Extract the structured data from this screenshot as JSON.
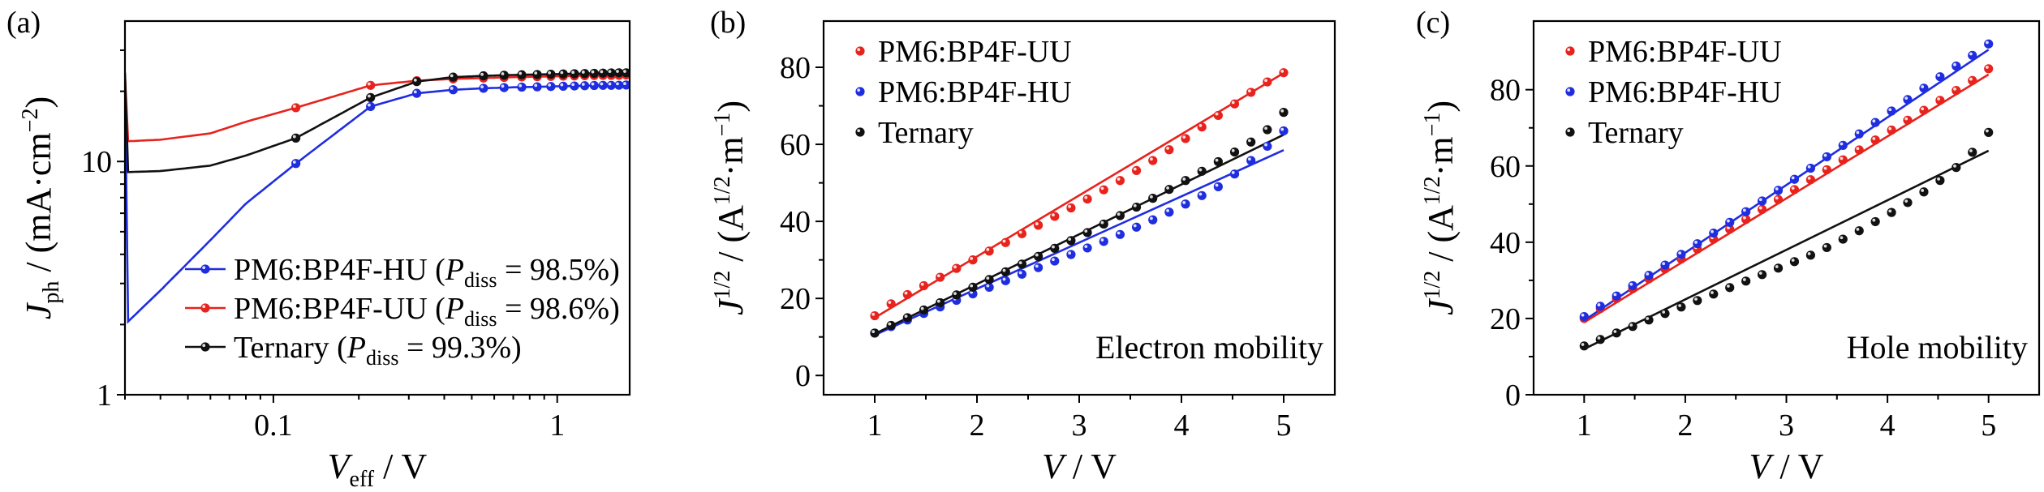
{
  "figure": {
    "panels": [
      "(a)",
      "(b)",
      "(c)"
    ]
  },
  "colors": {
    "red": "#e8221c",
    "blue": "#1f2de0",
    "black": "#111111"
  },
  "chart_data": [
    {
      "type": "line",
      "panel_label": "(a)",
      "title": "",
      "xlabel_main": "V",
      "xlabel_sub": "eff",
      "xlabel_tail": " / V",
      "ylabel_main": "J",
      "ylabel_sub": "ph",
      "ylabel_tail": " / (mA·cm",
      "ylabel_sup": "−2",
      "ylabel_end": ")",
      "x_scale": "log",
      "y_scale": "log",
      "xlim": [
        0.03,
        1.8
      ],
      "ylim": [
        1,
        40
      ],
      "x_ticks": [
        0.1,
        1
      ],
      "x_tick_labels": [
        "0.1",
        "1"
      ],
      "y_ticks": [
        1,
        10
      ],
      "y_tick_labels": [
        "1",
        "10"
      ],
      "legend_placement": "bottom-right",
      "series": [
        {
          "name": "PM6:BP4F-HU",
          "legend_pre": "PM6:BP4F-HU (",
          "legend_p": "P",
          "legend_sub": "diss",
          "legend_post": " = 98.5%)",
          "color": "blue",
          "x": [
            0.03,
            0.04,
            0.06,
            0.08,
            0.12,
            0.22,
            0.32,
            0.43,
            0.55,
            0.7,
            0.85,
            1.0,
            1.2,
            1.4,
            1.6,
            1.8
          ],
          "y": [
            2.0,
            2.8,
            4.6,
            6.6,
            9.8,
            17.2,
            19.6,
            20.3,
            20.6,
            20.8,
            20.9,
            21.0,
            21.1,
            21.2,
            21.2,
            21.3
          ]
        },
        {
          "name": "PM6:BP4F-UU",
          "legend_pre": "PM6:BP4F-UU (",
          "legend_p": "P",
          "legend_sub": "diss",
          "legend_post": " = 98.6%)",
          "color": "red",
          "x": [
            0.03,
            0.04,
            0.06,
            0.08,
            0.12,
            0.22,
            0.32,
            0.43,
            0.55,
            0.7,
            0.85,
            1.0,
            1.2,
            1.4,
            1.6,
            1.8
          ],
          "y": [
            12.2,
            12.4,
            13.2,
            14.8,
            17.0,
            21.2,
            22.2,
            22.6,
            22.8,
            23.0,
            23.1,
            23.2,
            23.3,
            23.4,
            23.4,
            23.5
          ]
        },
        {
          "name": "Ternary",
          "legend_pre": "Ternary (",
          "legend_p": "P",
          "legend_sub": "diss",
          "legend_post": " = 99.3%)",
          "color": "black",
          "x": [
            0.03,
            0.04,
            0.06,
            0.08,
            0.12,
            0.22,
            0.32,
            0.43,
            0.55,
            0.7,
            0.85,
            1.0,
            1.2,
            1.4,
            1.6,
            1.8
          ],
          "y": [
            9.0,
            9.1,
            9.6,
            10.6,
            12.6,
            18.8,
            22.0,
            23.0,
            23.3,
            23.5,
            23.6,
            23.7,
            23.8,
            23.9,
            24.0,
            24.0
          ]
        }
      ],
      "marker_x": [
        0.12,
        0.22,
        0.32,
        0.43,
        0.55,
        0.65,
        0.75,
        0.85,
        0.95,
        1.05,
        1.15,
        1.25,
        1.35,
        1.45,
        1.55,
        1.65,
        1.75
      ]
    },
    {
      "type": "scatter",
      "panel_label": "(b)",
      "title": "",
      "xlabel_main": "V",
      "xlabel_tail": " / V",
      "ylabel_main": "J",
      "ylabel_sup": "1/2",
      "ylabel_tail": " / (A",
      "ylabel_sup2": "1/2",
      "ylabel_mid": "·m",
      "ylabel_sup3": "−1",
      "ylabel_end": ")",
      "annotation": "Electron mobility",
      "xlim": [
        0.5,
        5.5
      ],
      "ylim": [
        -5,
        92
      ],
      "x_ticks": [
        1,
        2,
        3,
        4,
        5
      ],
      "x_tick_labels": [
        "1",
        "2",
        "3",
        "4",
        "5"
      ],
      "y_ticks": [
        0,
        20,
        40,
        60,
        80
      ],
      "y_tick_labels": [
        "0",
        "20",
        "40",
        "60",
        "80"
      ],
      "legend_placement": "top-left",
      "series": [
        {
          "name": "PM6:BP4F-UU",
          "color": "red",
          "x": [
            1.0,
            1.16,
            1.32,
            1.48,
            1.64,
            1.8,
            1.96,
            2.12,
            2.28,
            2.44,
            2.6,
            2.76,
            2.92,
            3.08,
            3.24,
            3.4,
            3.56,
            3.72,
            3.88,
            4.04,
            4.2,
            4.36,
            4.52,
            4.68,
            4.84,
            5.0
          ],
          "y": [
            15.5,
            18.6,
            21.0,
            23.3,
            25.5,
            27.8,
            30.0,
            32.3,
            34.5,
            36.8,
            39.0,
            41.3,
            43.5,
            45.8,
            48.2,
            50.6,
            53.2,
            55.8,
            58.6,
            61.5,
            64.5,
            67.5,
            70.5,
            73.5,
            76.2,
            78.6
          ],
          "fit": [
            [
              1.0,
              15.0
            ],
            [
              5.0,
              78.5
            ]
          ]
        },
        {
          "name": "PM6:BP4F-HU",
          "color": "blue",
          "x": [
            1.0,
            1.16,
            1.32,
            1.48,
            1.64,
            1.8,
            1.96,
            2.12,
            2.28,
            2.44,
            2.6,
            2.76,
            2.92,
            3.08,
            3.24,
            3.4,
            3.56,
            3.72,
            3.88,
            4.04,
            4.2,
            4.36,
            4.52,
            4.68,
            4.84,
            5.0
          ],
          "y": [
            11.0,
            12.7,
            14.4,
            16.1,
            17.8,
            19.5,
            21.2,
            22.9,
            24.6,
            26.3,
            28.0,
            29.7,
            31.4,
            33.1,
            34.8,
            36.6,
            38.5,
            40.4,
            42.4,
            44.5,
            46.7,
            49.0,
            52.3,
            55.8,
            59.5,
            63.5
          ],
          "fit": [
            [
              1.0,
              10.5
            ],
            [
              5.0,
              58.5
            ]
          ]
        },
        {
          "name": "Ternary",
          "color": "black",
          "x": [
            1.0,
            1.16,
            1.32,
            1.48,
            1.64,
            1.8,
            1.96,
            2.12,
            2.28,
            2.44,
            2.6,
            2.76,
            2.92,
            3.08,
            3.24,
            3.4,
            3.56,
            3.72,
            3.88,
            4.04,
            4.2,
            4.36,
            4.52,
            4.68,
            4.84,
            5.0
          ],
          "y": [
            11.0,
            13.0,
            15.0,
            17.0,
            18.9,
            20.9,
            22.9,
            24.9,
            26.9,
            28.9,
            30.9,
            33.0,
            35.0,
            37.1,
            39.3,
            41.5,
            43.7,
            46.0,
            48.3,
            50.6,
            53.0,
            55.5,
            58.0,
            60.6,
            63.8,
            68.3
          ],
          "fit": [
            [
              1.0,
              10.8
            ],
            [
              5.0,
              62.5
            ]
          ]
        }
      ]
    },
    {
      "type": "scatter",
      "panel_label": "(c)",
      "title": "",
      "xlabel_main": "V",
      "xlabel_tail": " / V",
      "ylabel_main": "J",
      "ylabel_sup": "1/2",
      "ylabel_tail": " / (A",
      "ylabel_sup2": "1/2",
      "ylabel_mid": "·m",
      "ylabel_sup3": "−1",
      "ylabel_end": ")",
      "annotation": "Hole mobility",
      "xlim": [
        0.5,
        5.5
      ],
      "ylim": [
        0,
        98
      ],
      "x_ticks": [
        1,
        2,
        3,
        4,
        5
      ],
      "x_tick_labels": [
        "1",
        "2",
        "3",
        "4",
        "5"
      ],
      "y_ticks": [
        0,
        20,
        40,
        60,
        80
      ],
      "y_tick_labels": [
        "0",
        "20",
        "40",
        "60",
        "80"
      ],
      "legend_placement": "top-left",
      "series": [
        {
          "name": "PM6:BP4F-UU",
          "color": "red",
          "x": [
            1.0,
            1.16,
            1.32,
            1.48,
            1.64,
            1.8,
            1.96,
            2.12,
            2.28,
            2.44,
            2.6,
            2.76,
            2.92,
            3.08,
            3.24,
            3.4,
            3.56,
            3.72,
            3.88,
            4.04,
            4.2,
            4.36,
            4.52,
            4.68,
            4.84,
            5.0
          ],
          "y": [
            20.0,
            22.6,
            25.2,
            27.8,
            30.4,
            33.0,
            35.6,
            38.2,
            40.8,
            43.4,
            46.0,
            48.6,
            51.2,
            53.8,
            56.4,
            59.0,
            61.6,
            64.2,
            66.8,
            69.4,
            72.0,
            74.6,
            77.2,
            79.8,
            82.4,
            85.5
          ],
          "fit": [
            [
              1.0,
              19.0
            ],
            [
              5.0,
              84.0
            ]
          ]
        },
        {
          "name": "PM6:BP4F-HU",
          "color": "blue",
          "x": [
            1.0,
            1.16,
            1.32,
            1.48,
            1.64,
            1.8,
            1.96,
            2.12,
            2.28,
            2.44,
            2.6,
            2.76,
            2.92,
            3.08,
            3.24,
            3.4,
            3.56,
            3.72,
            3.88,
            4.04,
            4.2,
            4.36,
            4.52,
            4.68,
            4.84,
            5.0
          ],
          "y": [
            20.5,
            23.2,
            25.9,
            28.6,
            31.3,
            34.0,
            36.8,
            39.6,
            42.4,
            45.2,
            48.0,
            50.8,
            53.6,
            56.5,
            59.4,
            62.4,
            65.4,
            68.4,
            71.4,
            74.4,
            77.4,
            80.4,
            83.4,
            86.2,
            89.0,
            92.0
          ],
          "fit": [
            [
              1.0,
              19.5
            ],
            [
              5.0,
              90.5
            ]
          ]
        },
        {
          "name": "Ternary",
          "color": "black",
          "x": [
            1.0,
            1.16,
            1.32,
            1.48,
            1.64,
            1.8,
            1.96,
            2.12,
            2.28,
            2.44,
            2.6,
            2.76,
            2.92,
            3.08,
            3.24,
            3.4,
            3.56,
            3.72,
            3.88,
            4.04,
            4.2,
            4.36,
            4.52,
            4.68,
            4.84,
            5.0
          ],
          "y": [
            12.8,
            14.5,
            16.2,
            17.9,
            19.6,
            21.3,
            23.0,
            24.7,
            26.4,
            28.1,
            29.8,
            31.5,
            33.2,
            34.9,
            36.6,
            38.6,
            40.8,
            43.0,
            45.4,
            47.8,
            50.4,
            53.2,
            56.2,
            59.6,
            63.6,
            68.8
          ],
          "fit": [
            [
              1.0,
              12.0
            ],
            [
              5.0,
              64.0
            ]
          ]
        }
      ]
    }
  ]
}
